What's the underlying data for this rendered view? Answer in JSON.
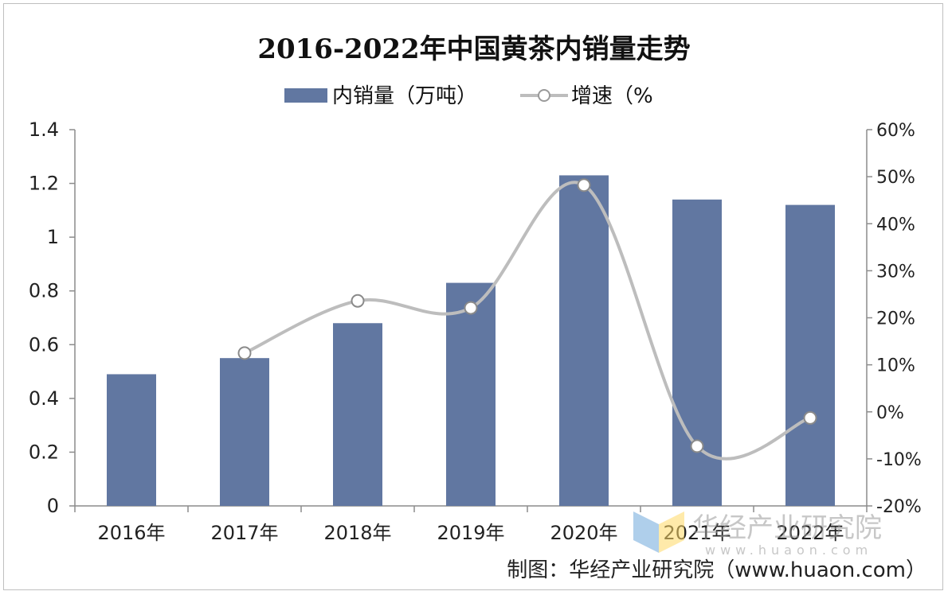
{
  "chart_data": {
    "type": "bar",
    "title": "2016-2022年中国黄茶内销量走势",
    "categories": [
      "2016年",
      "2017年",
      "2018年",
      "2019年",
      "2020年",
      "2021年",
      "2022年"
    ],
    "series": [
      {
        "name": "内销量（万吨）",
        "type": "bar",
        "axis": "left",
        "values": [
          0.49,
          0.55,
          0.68,
          0.83,
          1.23,
          1.14,
          1.12
        ],
        "color": "#6177a1"
      },
      {
        "name": "增速（%",
        "type": "line",
        "axis": "right",
        "values": [
          null,
          12.5,
          23.6,
          22.1,
          48.2,
          -7.3,
          -1.3
        ],
        "color": "#bdbdbd"
      }
    ],
    "y_left": {
      "min": 0,
      "max": 1.4,
      "ticks": [
        "0",
        "0.2",
        "0.4",
        "0.6",
        "0.8",
        "1",
        "1.2",
        "1.4"
      ]
    },
    "y_right": {
      "min": -20,
      "max": 60,
      "ticks": [
        "-20%",
        "-10%",
        "0%",
        "10%",
        "20%",
        "30%",
        "40%",
        "50%",
        "60%"
      ]
    },
    "grid": false,
    "legend_position": "top-center"
  },
  "watermark": {
    "text": "华经产业研究院",
    "sub": "www.huaon.com"
  },
  "credit": "制图：华经产业研究院（www.huaon.com）"
}
